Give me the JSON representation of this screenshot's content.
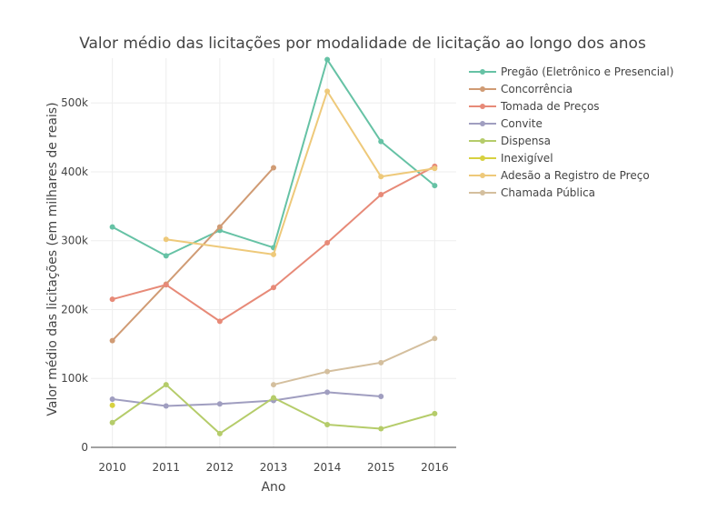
{
  "chart_data": {
    "type": "line",
    "title": "Valor médio das licitações por modalidade de licitação ao longo dos anos",
    "xlabel": "Ano",
    "ylabel": "Valor médio das licitações (em milhares de reais)",
    "xlim": [
      2009.6,
      2016.4
    ],
    "ylim": [
      0,
      565000
    ],
    "x_ticks": [
      2010,
      2011,
      2012,
      2013,
      2014,
      2015,
      2016
    ],
    "y_ticks": [
      {
        "value": 0,
        "label": "0"
      },
      {
        "value": 100000,
        "label": "100k"
      },
      {
        "value": 200000,
        "label": "200k"
      },
      {
        "value": 300000,
        "label": "300k"
      },
      {
        "value": 400000,
        "label": "400k"
      },
      {
        "value": 500000,
        "label": "500k"
      }
    ],
    "grid": true,
    "legend_position": "right",
    "series": [
      {
        "name": "Pregão (Eletrônico e Presencial)",
        "color": "#66c2a5",
        "points": [
          [
            2010,
            320000
          ],
          [
            2011,
            278000
          ],
          [
            2012,
            315000
          ],
          [
            2013,
            290000
          ],
          [
            2014,
            563000
          ],
          [
            2015,
            444000
          ],
          [
            2016,
            380000
          ]
        ]
      },
      {
        "name": "Concorrência",
        "color": "#d09b74",
        "points": [
          [
            2010,
            155000
          ],
          [
            2011,
            237000
          ],
          [
            2012,
            320000
          ],
          [
            2013,
            406000
          ]
        ]
      },
      {
        "name": "Tomada de Preços",
        "color": "#e78a78",
        "points": [
          [
            2010,
            215000
          ],
          [
            2011,
            236000
          ],
          [
            2012,
            183000
          ],
          [
            2013,
            232000
          ],
          [
            2014,
            297000
          ],
          [
            2015,
            367000
          ],
          [
            2016,
            408000
          ]
        ]
      },
      {
        "name": "Convite",
        "color": "#a09ec0",
        "points": [
          [
            2010,
            70000
          ],
          [
            2011,
            60000
          ],
          [
            2012,
            63000
          ],
          [
            2013,
            68000
          ],
          [
            2014,
            80000
          ],
          [
            2015,
            74000
          ]
        ]
      },
      {
        "name": "Dispensa",
        "color": "#b5cc6a",
        "points": [
          [
            2010,
            36000
          ],
          [
            2011,
            91000
          ],
          [
            2012,
            20000
          ],
          [
            2013,
            72000
          ],
          [
            2014,
            33000
          ],
          [
            2015,
            27000
          ],
          [
            2016,
            49000
          ]
        ]
      },
      {
        "name": "Inexigível",
        "color": "#d7d140",
        "points": [
          [
            2010,
            61000
          ]
        ]
      },
      {
        "name": "Adesão a Registro de Preço",
        "color": "#eec97a",
        "points": [
          [
            2011,
            302000
          ],
          [
            2013,
            280000
          ],
          [
            2014,
            517000
          ],
          [
            2015,
            393000
          ],
          [
            2016,
            405000
          ]
        ]
      },
      {
        "name": "Chamada Pública",
        "color": "#d4bf9e",
        "points": [
          [
            2013,
            91000
          ],
          [
            2014,
            110000
          ],
          [
            2015,
            123000
          ],
          [
            2016,
            158000
          ]
        ]
      }
    ]
  }
}
